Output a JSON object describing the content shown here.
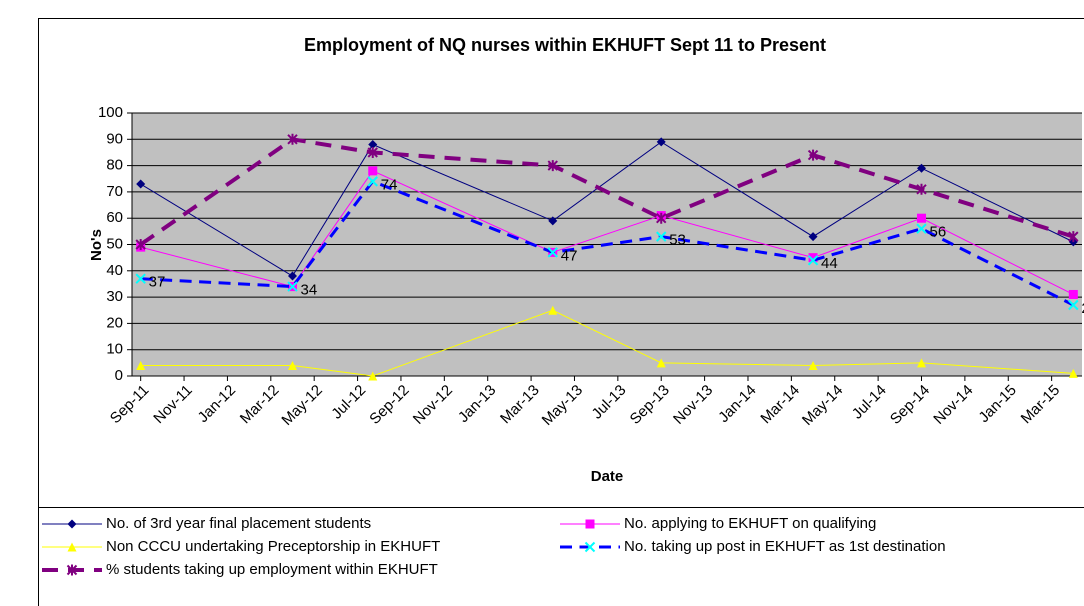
{
  "chart_data": {
    "type": "line",
    "title": "Employment of NQ nurses within EKHUFT Sept 11 to Present",
    "x_label": "Date",
    "y_label": "No's",
    "x": [
      0,
      7,
      10.7,
      19,
      24,
      31,
      36,
      43
    ],
    "xlim": [
      -0.4,
      43.4
    ],
    "xticks": [
      {
        "value": 0,
        "label": "Sep-11"
      },
      {
        "value": 2,
        "label": "Nov-11"
      },
      {
        "value": 4,
        "label": "Jan-12"
      },
      {
        "value": 6,
        "label": "Mar-12"
      },
      {
        "value": 8,
        "label": "May-12"
      },
      {
        "value": 10,
        "label": "Jul-12"
      },
      {
        "value": 12,
        "label": "Sep-12"
      },
      {
        "value": 14,
        "label": "Nov-12"
      },
      {
        "value": 16,
        "label": "Jan-13"
      },
      {
        "value": 18,
        "label": "Mar-13"
      },
      {
        "value": 20,
        "label": "May-13"
      },
      {
        "value": 22,
        "label": "Jul-13"
      },
      {
        "value": 24,
        "label": "Sep-13"
      },
      {
        "value": 26,
        "label": "Nov-13"
      },
      {
        "value": 28,
        "label": "Jan-14"
      },
      {
        "value": 30,
        "label": "Mar-14"
      },
      {
        "value": 32,
        "label": "May-14"
      },
      {
        "value": 34,
        "label": "Jul-14"
      },
      {
        "value": 36,
        "label": "Sep-14"
      },
      {
        "value": 38,
        "label": "Nov-14"
      },
      {
        "value": 40,
        "label": "Jan-15"
      },
      {
        "value": 42,
        "label": "Mar-15"
      }
    ],
    "ylim": [
      0,
      100
    ],
    "yticks": [
      0,
      10,
      20,
      30,
      40,
      50,
      60,
      70,
      80,
      90,
      100
    ],
    "grid": true,
    "background": "#c0c0c0",
    "series": [
      {
        "name": "No. of 3rd year final placement students",
        "color": "#000080",
        "marker": "diamond",
        "marker_color": "#000080",
        "dashed": false,
        "width": 1,
        "values": [
          73,
          38,
          88,
          59,
          89,
          53,
          79,
          51
        ]
      },
      {
        "name": "No. applying to EKHUFT on qualifying",
        "color": "#ff00ff",
        "marker": "square",
        "marker_color": "#ff00ff",
        "dashed": false,
        "width": 1,
        "values": [
          49,
          34,
          78,
          47,
          61,
          45,
          60,
          31
        ]
      },
      {
        "name": "Non CCCU undertaking Preceptorship in EKHUFT",
        "color": "#ffff00",
        "marker": "triangle",
        "marker_color": "#ffff00",
        "dashed": false,
        "width": 1,
        "values": [
          4,
          4,
          0,
          25,
          5,
          4,
          5,
          1
        ]
      },
      {
        "name": "No. taking up post in EKHUFT as 1st destination",
        "color": "#0000ff",
        "marker": "x",
        "marker_color": "#00ffff",
        "dashed": true,
        "width": 3,
        "show_labels": true,
        "values": [
          37,
          34,
          74,
          47,
          53,
          44,
          56,
          27
        ]
      },
      {
        "name": "% students taking up employment within EKHUFT",
        "color": "#800080",
        "marker": "asterisk",
        "marker_color": "#800080",
        "dashed": true,
        "width": 4,
        "values": [
          50,
          90,
          85,
          80,
          60,
          84,
          71,
          53
        ]
      }
    ]
  }
}
